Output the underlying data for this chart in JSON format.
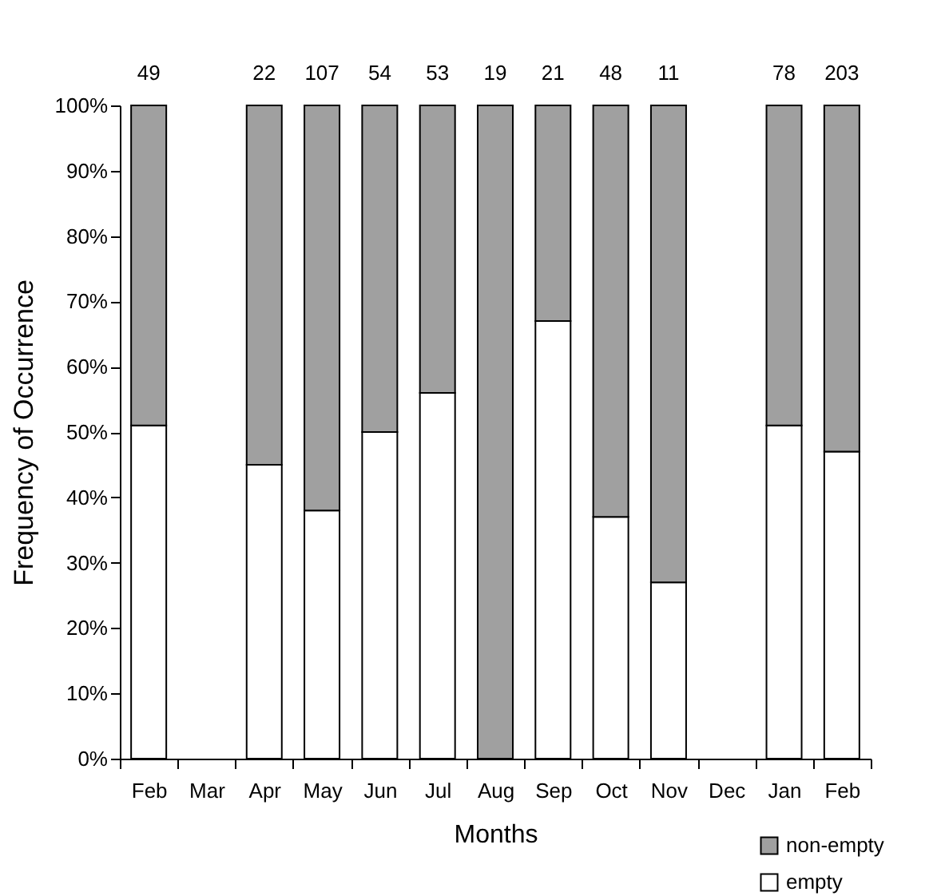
{
  "chart_data": {
    "type": "bar",
    "stacked": true,
    "xlabel": "Months",
    "ylabel": "Frequency of Occurrence",
    "categories": [
      "Feb",
      "Mar",
      "Apr",
      "May",
      "Jun",
      "Jul",
      "Aug",
      "Sep",
      "Oct",
      "Nov",
      "Dec",
      "Jan",
      "Feb"
    ],
    "series": [
      {
        "name": "empty",
        "color": "#ffffff",
        "values": [
          51,
          null,
          45,
          38,
          50,
          56,
          0,
          67,
          37,
          27,
          null,
          51,
          47
        ]
      },
      {
        "name": "non-empty",
        "color": "#a0a0a0",
        "values": [
          49,
          null,
          55,
          62,
          50,
          44,
          100,
          33,
          63,
          73,
          null,
          49,
          53
        ]
      }
    ],
    "ylim": [
      0,
      100
    ],
    "yticks": [
      {
        "value": 0,
        "label": "0%"
      },
      {
        "value": 10,
        "label": "10%"
      },
      {
        "value": 20,
        "label": "20%"
      },
      {
        "value": 30,
        "label": "30%"
      },
      {
        "value": 40,
        "label": "40%"
      },
      {
        "value": 50,
        "label": "50%"
      },
      {
        "value": 60,
        "label": "60%"
      },
      {
        "value": 70,
        "label": "70%"
      },
      {
        "value": 80,
        "label": "80%"
      },
      {
        "value": 90,
        "label": "90%"
      },
      {
        "value": 100,
        "label": "100%"
      }
    ],
    "grid": false,
    "legend": "bottom right",
    "annotations": [
      "49",
      "22",
      "107",
      "54",
      "53",
      "19",
      "21",
      "48",
      "11",
      "78",
      "203"
    ]
  }
}
